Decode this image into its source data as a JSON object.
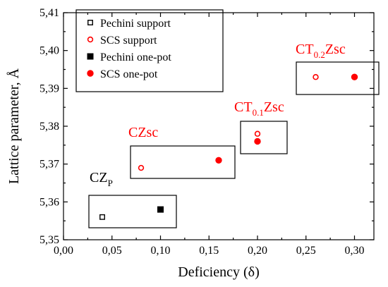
{
  "chart_data": {
    "type": "scatter",
    "title": "",
    "xlabel": "Deficiency (δ)",
    "ylabel": "Lattice parameter, Å",
    "xlim": [
      0.0,
      0.32
    ],
    "ylim": [
      5.35,
      5.41
    ],
    "x_ticks": [
      "0,00",
      "0,05",
      "0,10",
      "0,15",
      "0,20",
      "0,25",
      "0,30"
    ],
    "y_ticks": [
      "5,35",
      "5,36",
      "5,37",
      "5,38",
      "5,39",
      "5,40",
      "5,41"
    ],
    "grid": false,
    "legend_position": "top-left",
    "series": [
      {
        "name": "Pechini support",
        "marker": "open-square",
        "color": "#000000",
        "points": [
          [
            0.04,
            5.356
          ]
        ]
      },
      {
        "name": "SCS support",
        "marker": "open-circle",
        "color": "#ff0000",
        "points": [
          [
            0.08,
            5.369
          ],
          [
            0.2,
            5.378
          ],
          [
            0.26,
            5.393
          ]
        ]
      },
      {
        "name": "Pechini one-pot",
        "marker": "filled-square",
        "color": "#000000",
        "points": [
          [
            0.1,
            5.358
          ]
        ]
      },
      {
        "name": "SCS one-pot",
        "marker": "filled-circle",
        "color": "#ff0000",
        "points": [
          [
            0.16,
            5.371
          ],
          [
            0.2,
            5.376
          ],
          [
            0.3,
            5.393
          ]
        ]
      }
    ],
    "annotations": [
      {
        "text": "CZ",
        "sub": "P",
        "color": "#000000"
      },
      {
        "text": "CZsc",
        "sub": "",
        "color": "#ff0000"
      },
      {
        "text": "CT",
        "sub": "0.1",
        "suffix": "Zsc",
        "color": "#ff0000"
      },
      {
        "text": "CT",
        "sub": "0.2",
        "suffix": "Zsc",
        "color": "#ff0000"
      }
    ]
  }
}
